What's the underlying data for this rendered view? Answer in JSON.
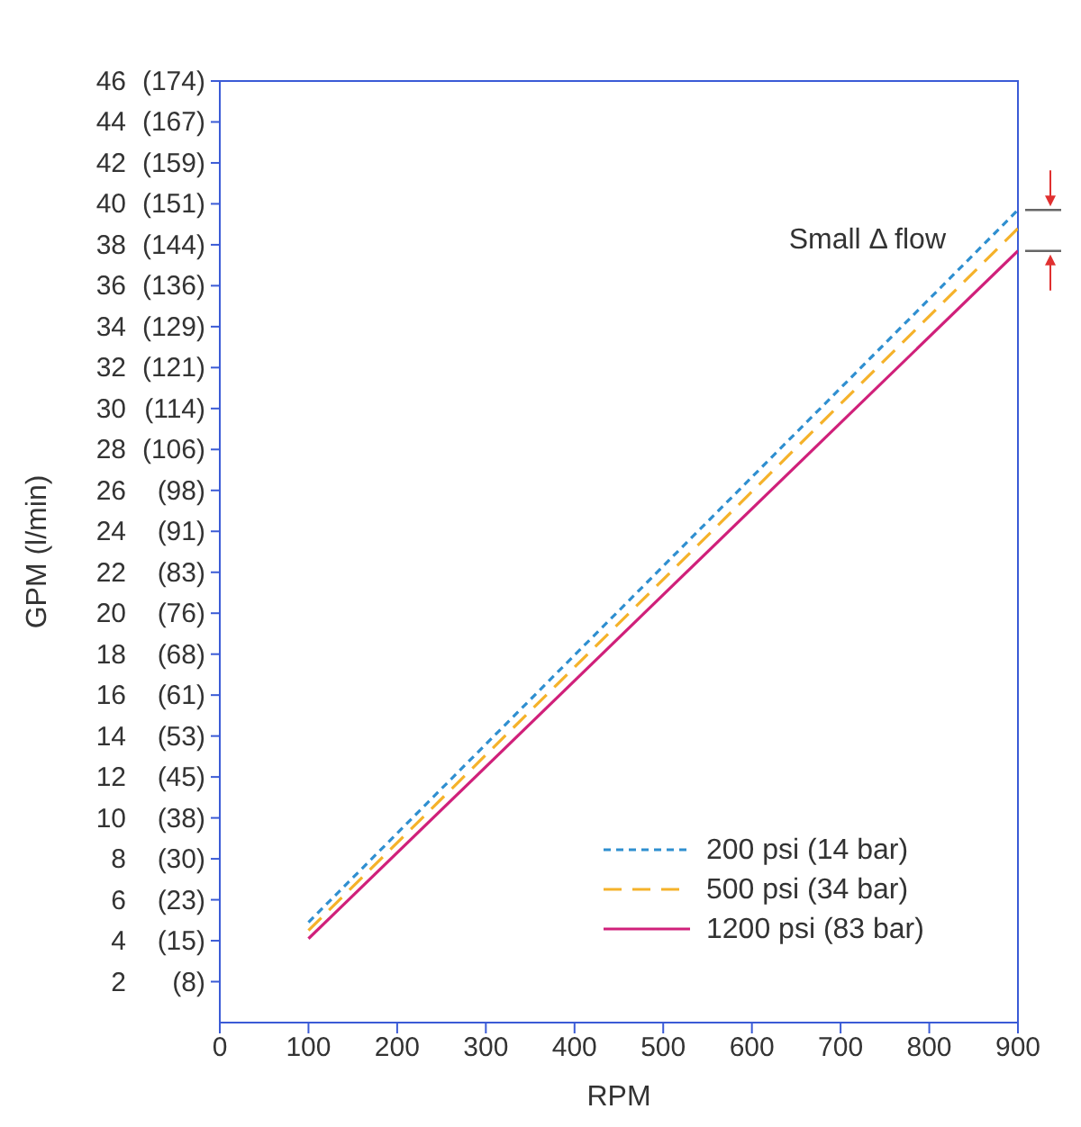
{
  "chart_data": {
    "type": "line",
    "xlabel": "RPM",
    "ylabel": "GPM (l/min)",
    "x": [
      100,
      900
    ],
    "series": [
      {
        "name": "200 psi (14 bar)",
        "color": "#2f8fd0",
        "values": [
          4.9,
          39.7
        ],
        "line_style": "dotted"
      },
      {
        "name": "500 psi (34 bar)",
        "color": "#f5b22a",
        "values": [
          4.5,
          38.8
        ],
        "line_style": "dashed"
      },
      {
        "name": "1200 psi (83 bar)",
        "color": "#d0207a",
        "values": [
          4.1,
          37.7
        ],
        "line_style": "solid"
      }
    ],
    "xlim": [
      0,
      900
    ],
    "xticks": [
      0,
      100,
      200,
      300,
      400,
      500,
      600,
      700,
      800,
      900
    ],
    "ylim": [
      0,
      46
    ],
    "yticks": [
      2,
      4,
      6,
      8,
      10,
      12,
      14,
      16,
      18,
      20,
      22,
      24,
      26,
      28,
      30,
      32,
      34,
      36,
      38,
      40,
      42,
      44,
      46
    ],
    "y2lim": [
      0,
      174.13
    ],
    "y2ticks": [
      {
        "value": 7.57,
        "label": "(8)"
      },
      {
        "value": 15.14,
        "label": "(15)"
      },
      {
        "value": 22.71,
        "label": "(23)"
      },
      {
        "value": 30.28,
        "label": "(30)"
      },
      {
        "value": 37.85,
        "label": "(38)"
      },
      {
        "value": 45.42,
        "label": "(45)"
      },
      {
        "value": 52.99,
        "label": "(53)"
      },
      {
        "value": 60.57,
        "label": "(61)"
      },
      {
        "value": 68.14,
        "label": "(68)"
      },
      {
        "value": 75.71,
        "label": "(76)"
      },
      {
        "value": 83.28,
        "label": "(83)"
      },
      {
        "value": 90.85,
        "label": "(91)"
      },
      {
        "value": 98.42,
        "label": "(98)"
      },
      {
        "value": 105.99,
        "label": "(106)"
      },
      {
        "value": 113.56,
        "label": "(114)"
      },
      {
        "value": 121.13,
        "label": "(121)"
      },
      {
        "value": 128.7,
        "label": "(129)"
      },
      {
        "value": 136.27,
        "label": "(136)"
      },
      {
        "value": 143.84,
        "label": "(144)"
      },
      {
        "value": 151.42,
        "label": "(151)"
      },
      {
        "value": 158.99,
        "label": "(159)"
      },
      {
        "value": 166.56,
        "label": "(167)"
      },
      {
        "value": 174.13,
        "label": "(174)"
      }
    ],
    "annotations": [
      "Small Δ flow"
    ],
    "legend": "bottom right",
    "marker": "none",
    "grid": false
  }
}
